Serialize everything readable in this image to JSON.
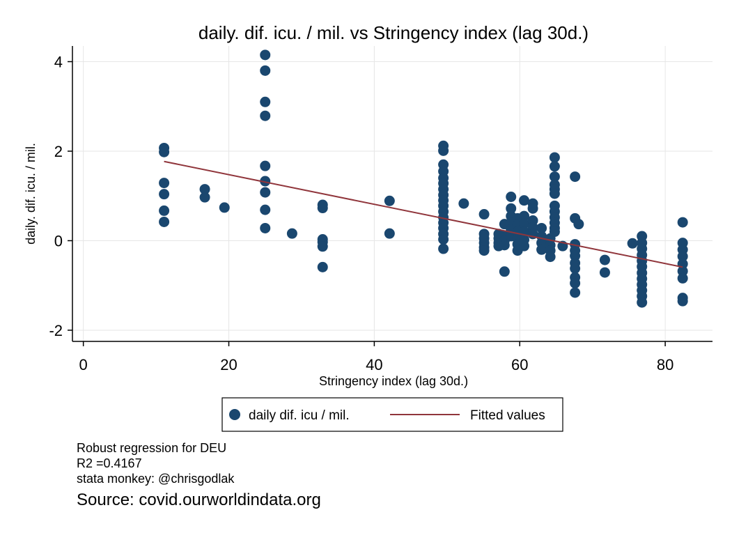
{
  "chart_data": {
    "type": "scatter",
    "title": "daily. dif. icu. / mil. vs Stringency index (lag 30d.)",
    "xlabel": "Stringency index (lag 30d.)",
    "ylabel": "daily. dif. icu. / mil.",
    "xlim": [
      -1.5,
      86.5
    ],
    "ylim": [
      -2.25,
      4.35
    ],
    "xticks": [
      0,
      20,
      40,
      60,
      80
    ],
    "yticks": [
      -2,
      0,
      2,
      4
    ],
    "grid": true,
    "legend_position": "bottom",
    "colors": {
      "scatter": "#1a476f",
      "fit": "#90353b",
      "grid": "#e6e6e6"
    },
    "series": [
      {
        "name": "daily dif. icu / mil.",
        "kind": "scatter",
        "points": [
          [
            11.1,
            2.07
          ],
          [
            11.1,
            1.98
          ],
          [
            11.1,
            1.29
          ],
          [
            11.1,
            1.04
          ],
          [
            11.1,
            0.67
          ],
          [
            11.1,
            0.42
          ],
          [
            16.7,
            1.15
          ],
          [
            16.7,
            0.97
          ],
          [
            19.4,
            0.74
          ],
          [
            25.0,
            4.15
          ],
          [
            25.0,
            3.8
          ],
          [
            25.0,
            3.1
          ],
          [
            25.0,
            2.79
          ],
          [
            25.0,
            1.67
          ],
          [
            25.0,
            1.33
          ],
          [
            25.0,
            1.08
          ],
          [
            25.0,
            0.69
          ],
          [
            25.0,
            0.28
          ],
          [
            28.7,
            0.16
          ],
          [
            32.9,
            0.8
          ],
          [
            32.9,
            0.73
          ],
          [
            32.9,
            0.03
          ],
          [
            32.9,
            -0.03
          ],
          [
            32.9,
            -0.13
          ],
          [
            32.9,
            -0.59
          ],
          [
            42.1,
            0.89
          ],
          [
            42.1,
            0.16
          ],
          [
            49.5,
            2.12
          ],
          [
            49.5,
            2.01
          ],
          [
            49.5,
            1.7
          ],
          [
            49.5,
            1.55
          ],
          [
            49.5,
            1.4
          ],
          [
            49.5,
            1.28
          ],
          [
            49.5,
            1.15
          ],
          [
            49.5,
            1.02
          ],
          [
            49.5,
            0.9
          ],
          [
            49.5,
            0.78
          ],
          [
            49.5,
            0.65
          ],
          [
            49.5,
            0.52
          ],
          [
            49.5,
            0.4
          ],
          [
            49.5,
            0.28
          ],
          [
            49.5,
            0.15
          ],
          [
            49.5,
            0.03
          ],
          [
            49.5,
            -0.18
          ],
          [
            52.3,
            0.83
          ],
          [
            55.1,
            0.59
          ],
          [
            55.1,
            0.15
          ],
          [
            55.1,
            0.05
          ],
          [
            55.1,
            -0.05
          ],
          [
            55.1,
            -0.15
          ],
          [
            55.1,
            -0.22
          ],
          [
            57.1,
            0.15
          ],
          [
            57.1,
            0.05
          ],
          [
            57.1,
            -0.05
          ],
          [
            57.1,
            -0.12
          ],
          [
            57.9,
            0.37
          ],
          [
            57.9,
            0.1
          ],
          [
            57.9,
            0.0
          ],
          [
            57.9,
            -0.1
          ],
          [
            57.9,
            -0.69
          ],
          [
            58.8,
            0.98
          ],
          [
            58.8,
            0.72
          ],
          [
            58.8,
            0.55
          ],
          [
            58.8,
            0.4
          ],
          [
            58.8,
            0.25
          ],
          [
            58.8,
            0.1
          ],
          [
            59.7,
            0.5
          ],
          [
            59.7,
            0.35
          ],
          [
            59.7,
            0.2
          ],
          [
            59.7,
            0.05
          ],
          [
            59.7,
            -0.08
          ],
          [
            59.7,
            -0.22
          ],
          [
            60.6,
            0.9
          ],
          [
            60.6,
            0.55
          ],
          [
            60.6,
            0.38
          ],
          [
            60.6,
            0.2
          ],
          [
            60.6,
            0.02
          ],
          [
            60.6,
            -0.12
          ],
          [
            61.8,
            0.83
          ],
          [
            61.8,
            0.72
          ],
          [
            61.8,
            0.45
          ],
          [
            61.8,
            0.3
          ],
          [
            61.8,
            0.15
          ],
          [
            63.0,
            0.28
          ],
          [
            63.0,
            0.1
          ],
          [
            63.0,
            -0.05
          ],
          [
            63.0,
            -0.2
          ],
          [
            64.2,
            0.05
          ],
          [
            64.2,
            -0.1
          ],
          [
            64.2,
            -0.22
          ],
          [
            64.2,
            -0.36
          ],
          [
            64.8,
            1.86
          ],
          [
            64.8,
            1.66
          ],
          [
            64.8,
            1.43
          ],
          [
            64.8,
            1.25
          ],
          [
            64.8,
            1.15
          ],
          [
            64.8,
            1.05
          ],
          [
            64.8,
            0.78
          ],
          [
            64.8,
            0.65
          ],
          [
            64.8,
            0.52
          ],
          [
            64.8,
            0.4
          ],
          [
            64.8,
            0.28
          ],
          [
            64.8,
            0.2
          ],
          [
            65.9,
            -0.12
          ],
          [
            67.6,
            1.43
          ],
          [
            67.6,
            0.5
          ],
          [
            67.6,
            -0.08
          ],
          [
            67.6,
            -0.22
          ],
          [
            67.6,
            -0.34
          ],
          [
            67.6,
            -0.5
          ],
          [
            67.6,
            -0.62
          ],
          [
            67.6,
            -0.82
          ],
          [
            67.6,
            -0.95
          ],
          [
            67.6,
            -1.16
          ],
          [
            68.1,
            0.37
          ],
          [
            71.7,
            -0.43
          ],
          [
            71.7,
            -0.71
          ],
          [
            75.5,
            -0.06
          ],
          [
            76.8,
            0.1
          ],
          [
            76.8,
            -0.05
          ],
          [
            76.8,
            -0.18
          ],
          [
            76.8,
            -0.32
          ],
          [
            76.8,
            -0.45
          ],
          [
            76.8,
            -0.58
          ],
          [
            76.8,
            -0.72
          ],
          [
            76.8,
            -0.85
          ],
          [
            76.8,
            -0.98
          ],
          [
            76.8,
            -1.11
          ],
          [
            76.8,
            -1.24
          ],
          [
            76.8,
            -1.38
          ],
          [
            82.4,
            0.41
          ],
          [
            82.4,
            -0.05
          ],
          [
            82.4,
            -0.2
          ],
          [
            82.4,
            -0.35
          ],
          [
            82.4,
            -0.52
          ],
          [
            82.4,
            -0.68
          ],
          [
            82.4,
            -0.84
          ],
          [
            82.4,
            -1.28
          ],
          [
            82.4,
            -1.35
          ]
        ]
      },
      {
        "name": "Fitted values",
        "kind": "line",
        "points": [
          [
            11.1,
            1.77
          ],
          [
            82.4,
            -0.59
          ]
        ]
      }
    ]
  },
  "notes": {
    "line1": "Robust regression for DEU",
    "line2": "R2 =0.4167",
    "line3": "stata monkey: @chrisgodlak",
    "source": "Source: covid.ourworldindata.org"
  }
}
